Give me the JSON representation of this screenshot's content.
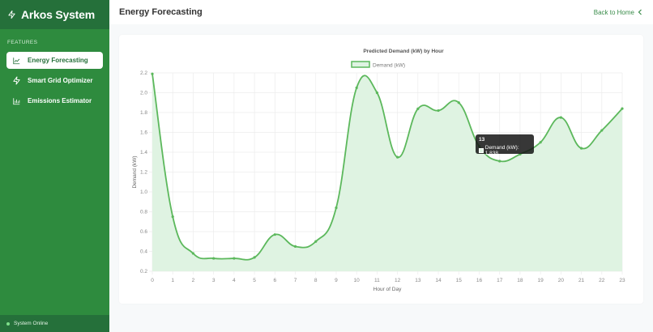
{
  "sidebar": {
    "brand": "Arkos System",
    "section_label": "FEATURES",
    "items": [
      {
        "label": "Energy Forecasting",
        "icon": "line-chart-icon",
        "active": true
      },
      {
        "label": "Smart Grid Optimizer",
        "icon": "lightning-icon",
        "active": false
      },
      {
        "label": "Emissions Estimator",
        "icon": "bar-chart-icon",
        "active": false
      }
    ],
    "status": "System Online"
  },
  "header": {
    "title": "Energy Forecasting",
    "back_label": "Back to Home"
  },
  "tooltip": {
    "title": "13",
    "label": "Demand (kW): 1.838"
  },
  "colors": {
    "sidebar": "#2e8b3e",
    "sidebar_dark": "#25703a",
    "line": "#5cb85c",
    "fill": "#dff3e2"
  },
  "chart_data": {
    "type": "line",
    "title": "Predicted Demand (kW) by Hour",
    "xlabel": "Hour of Day",
    "ylabel": "Demand (kW)",
    "legend": [
      "Demand (kW)"
    ],
    "legend_position": "top",
    "grid": true,
    "ylim": [
      0.2,
      2.2
    ],
    "yticks": [
      0.2,
      0.4,
      0.6,
      0.8,
      1.0,
      1.2,
      1.4,
      1.6,
      1.8,
      2.0,
      2.2
    ],
    "x": [
      0,
      1,
      2,
      3,
      4,
      5,
      6,
      7,
      8,
      9,
      10,
      11,
      12,
      13,
      14,
      15,
      16,
      17,
      18,
      19,
      20,
      21,
      22,
      23
    ],
    "series": [
      {
        "name": "Demand (kW)",
        "values": [
          2.19,
          0.75,
          0.38,
          0.33,
          0.33,
          0.34,
          0.57,
          0.45,
          0.5,
          0.84,
          2.05,
          2.0,
          1.35,
          1.838,
          1.82,
          1.9,
          1.46,
          1.31,
          1.38,
          1.5,
          1.75,
          1.44,
          1.62,
          1.84
        ]
      }
    ]
  }
}
